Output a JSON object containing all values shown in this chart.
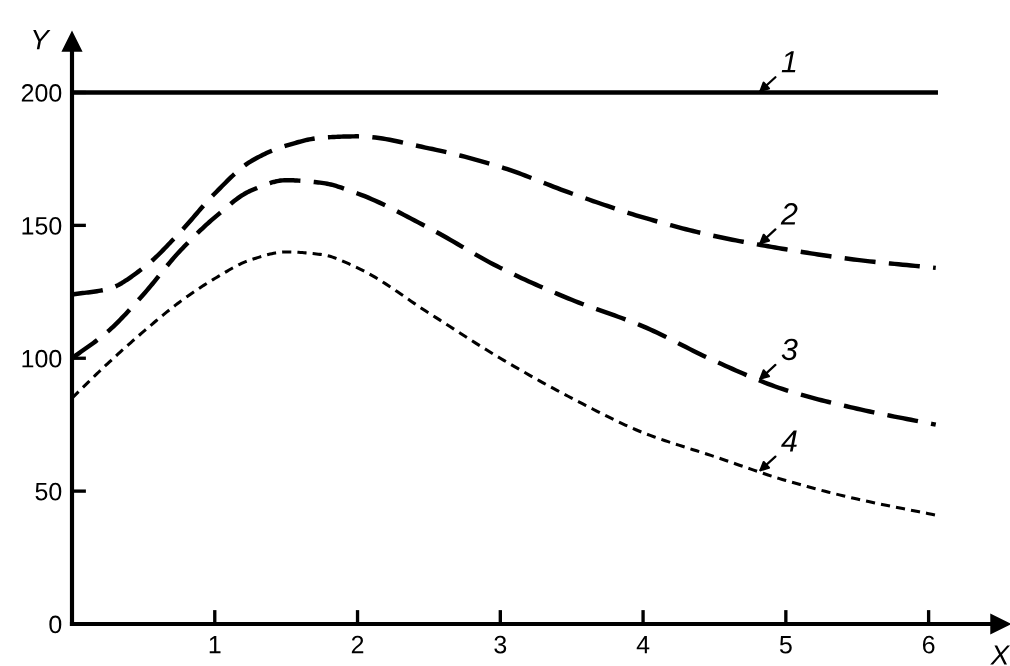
{
  "chart_data": {
    "type": "line",
    "xlabel": "X",
    "ylabel": "Y",
    "xlim": [
      0,
      6.5
    ],
    "ylim": [
      0,
      219
    ],
    "xticks": [
      1,
      2,
      3,
      4,
      5,
      6
    ],
    "yticks": [
      0,
      50,
      100,
      150,
      200
    ],
    "grid": false,
    "legend": false,
    "marker": "none",
    "series": [
      {
        "name": "1",
        "color": "#000000",
        "line_style": "solid",
        "x": [
          0,
          6.05
        ],
        "values": [
          200,
          200
        ]
      },
      {
        "name": "2",
        "color": "#000000",
        "line_style": "dashed",
        "x": [
          0,
          0.25,
          0.5,
          0.75,
          1,
          1.25,
          1.5,
          1.75,
          2,
          2.5,
          3,
          3.5,
          4,
          4.5,
          5,
          5.5,
          6.05
        ],
        "values": [
          124,
          126,
          134,
          147,
          162,
          174,
          180,
          183,
          183.5,
          179,
          172,
          162,
          153,
          146,
          141,
          137,
          134
        ]
      },
      {
        "name": "3",
        "color": "#000000",
        "line_style": "dashed",
        "x": [
          0,
          0.25,
          0.5,
          0.75,
          1,
          1.25,
          1.5,
          1.75,
          2,
          2.5,
          3,
          3.5,
          4,
          4.5,
          5,
          5.5,
          6.05
        ],
        "values": [
          100,
          110,
          124,
          140,
          153,
          163,
          167,
          166,
          162,
          149,
          134,
          122,
          112,
          99,
          88,
          81,
          75
        ]
      },
      {
        "name": "4",
        "color": "#000000",
        "line_style": "dotted",
        "x": [
          0,
          0.25,
          0.5,
          0.75,
          1,
          1.25,
          1.5,
          1.75,
          2,
          2.5,
          3,
          3.5,
          4,
          4.5,
          5,
          5.5,
          6.05
        ],
        "values": [
          85,
          98,
          110,
          121,
          130,
          137,
          140,
          139,
          134,
          117,
          100,
          85,
          72,
          63,
          54,
          47,
          41
        ]
      }
    ]
  }
}
